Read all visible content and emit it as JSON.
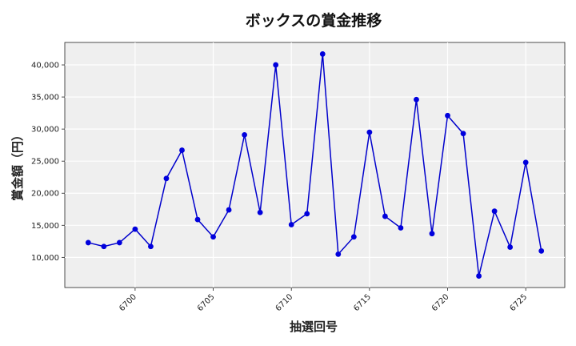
{
  "chart_data": {
    "type": "line",
    "title": "ボックスの賞金推移",
    "xlabel": "抽選回号",
    "ylabel": "賞金額（円）",
    "x_ticks": [
      6700,
      6705,
      6710,
      6715,
      6720,
      6725
    ],
    "x_tick_labels": [
      "6700",
      "6705",
      "6710",
      "6715",
      "6720",
      "6725"
    ],
    "y_ticks": [
      10000,
      15000,
      20000,
      25000,
      30000,
      35000,
      40000
    ],
    "y_tick_labels": [
      "10,000",
      "15,000",
      "20,000",
      "25,000",
      "30,000",
      "35,000",
      "40,000"
    ],
    "xlim": [
      6695.5,
      6727.5
    ],
    "ylim": [
      5300,
      43500
    ],
    "grid": true,
    "line_color": "#0000cc",
    "marker_color": "#0000dd",
    "plot_background": "#efefef",
    "series": [
      {
        "x": [
          6697,
          6698,
          6699,
          6700,
          6701,
          6702,
          6703,
          6704,
          6705,
          6706,
          6707,
          6708,
          6709,
          6710,
          6711,
          6712,
          6713,
          6714,
          6715,
          6716,
          6717,
          6718,
          6719,
          6720,
          6721,
          6722,
          6723,
          6724,
          6725,
          6726
        ],
        "values": [
          12300,
          11700,
          12300,
          14400,
          11700,
          22300,
          26700,
          15900,
          13200,
          17400,
          29100,
          17000,
          40000,
          15100,
          16800,
          41700,
          10500,
          13200,
          29500,
          16400,
          14600,
          34600,
          13700,
          32100,
          29300,
          7100,
          17200,
          11600,
          24800,
          11000
        ]
      }
    ]
  }
}
